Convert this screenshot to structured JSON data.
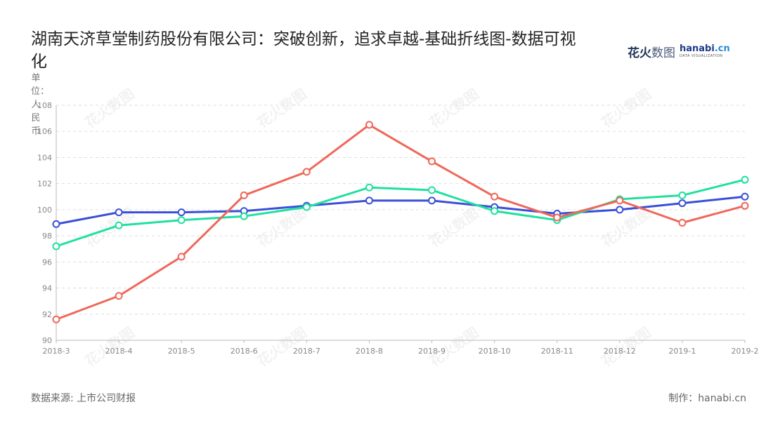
{
  "title": "湖南天济草堂制药股份有限公司：突破创新，追求卓越-基础折线图-数据可视化",
  "unit_label": "单位：人民币",
  "logo": {
    "cn_main": "花火",
    "cn_sub": "数图",
    "en_main": "hanabi",
    "en_dot": ".cn",
    "en_sub": "DATA VISUALIZATION"
  },
  "watermark_text": "花火数图",
  "footer": {
    "source": "数据来源: 上市公司财报",
    "credit": "制作：hanabi.cn"
  },
  "colors": {
    "series_blue": "#3a4fd7",
    "series_green": "#20e0a0",
    "series_red": "#f0675a",
    "grid": "#dddddd",
    "axis": "#bbbbbb",
    "tick_text": "#888888"
  },
  "chart_data": {
    "type": "line",
    "categories": [
      "2018-3",
      "2018-4",
      "2018-5",
      "2018-6",
      "2018-7",
      "2018-8",
      "2018-9",
      "2018-10",
      "2018-11",
      "2018-12",
      "2019-1",
      "2019-2"
    ],
    "ylim": [
      90,
      108
    ],
    "yticks": [
      90,
      92,
      94,
      96,
      98,
      100,
      102,
      104,
      106,
      108
    ],
    "grid": true,
    "series": [
      {
        "color": "#3a4fd7",
        "values": [
          98.9,
          99.8,
          99.8,
          99.9,
          100.3,
          100.7,
          100.7,
          100.2,
          99.7,
          100.0,
          100.5,
          101.0
        ]
      },
      {
        "color": "#20e0a0",
        "values": [
          97.2,
          98.8,
          99.2,
          99.5,
          100.2,
          101.7,
          101.5,
          99.9,
          99.2,
          100.8,
          101.1,
          102.3
        ]
      },
      {
        "color": "#f0675a",
        "values": [
          91.6,
          93.4,
          96.4,
          101.1,
          102.9,
          106.5,
          103.7,
          101.0,
          99.4,
          100.7,
          99.0,
          100.3
        ]
      }
    ]
  }
}
